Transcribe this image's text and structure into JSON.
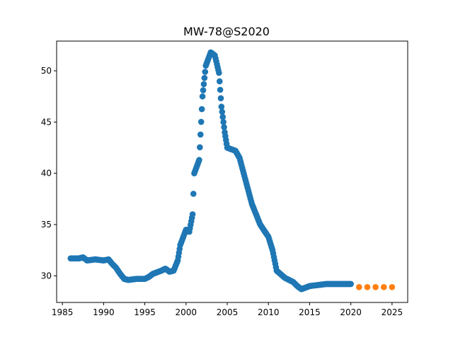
{
  "chart_data": {
    "type": "scatter",
    "title": "MW-78@S2020",
    "xlabel": "",
    "ylabel": "",
    "xlim": [
      1984.3,
      2026.9
    ],
    "ylim": [
      27.4,
      52.9
    ],
    "grid": false,
    "legend": "none",
    "x_ticks": [
      1985,
      1990,
      1995,
      2000,
      2005,
      2010,
      2015,
      2020,
      2025
    ],
    "y_ticks": [
      30,
      35,
      40,
      45,
      50
    ],
    "series": [
      {
        "color": "#1f77b4",
        "anchors": [
          [
            1986.0,
            31.7
          ],
          [
            1987.0,
            31.7
          ],
          [
            1987.5,
            31.8
          ],
          [
            1988.0,
            31.5
          ],
          [
            1989.0,
            31.6
          ],
          [
            1990.0,
            31.5
          ],
          [
            1990.6,
            31.6
          ],
          [
            1991.0,
            31.2
          ],
          [
            1991.5,
            30.8
          ],
          [
            1992.0,
            30.2
          ],
          [
            1992.5,
            29.7
          ],
          [
            1993.0,
            29.6
          ],
          [
            1994.0,
            29.7
          ],
          [
            1995.0,
            29.7
          ],
          [
            1995.5,
            29.9
          ],
          [
            1996.0,
            30.2
          ],
          [
            1997.0,
            30.5
          ],
          [
            1997.5,
            30.7
          ],
          [
            1998.0,
            30.4
          ],
          [
            1998.5,
            30.5
          ],
          [
            1999.0,
            31.5
          ],
          [
            1999.3,
            33.0
          ],
          [
            2000.0,
            34.5
          ],
          [
            2000.4,
            34.3
          ],
          [
            2000.8,
            36.0
          ],
          [
            2001.0,
            40.0
          ],
          [
            2001.6,
            41.3
          ],
          [
            2002.0,
            47.5
          ],
          [
            2002.4,
            50.5
          ],
          [
            2003.0,
            51.8
          ],
          [
            2003.5,
            51.5
          ],
          [
            2004.0,
            49.8
          ],
          [
            2004.3,
            46.5
          ],
          [
            2004.7,
            44.0
          ],
          [
            2005.0,
            42.5
          ],
          [
            2006.0,
            42.2
          ],
          [
            2006.5,
            41.5
          ],
          [
            2007.0,
            40.0
          ],
          [
            2007.5,
            38.5
          ],
          [
            2008.0,
            37.0
          ],
          [
            2009.0,
            35.0
          ],
          [
            2010.0,
            33.8
          ],
          [
            2010.5,
            32.5
          ],
          [
            2011.0,
            30.5
          ],
          [
            2012.0,
            29.8
          ],
          [
            2013.0,
            29.4
          ],
          [
            2013.5,
            29.0
          ],
          [
            2014.0,
            28.7
          ],
          [
            2015.0,
            29.0
          ],
          [
            2016.0,
            29.1
          ],
          [
            2017.0,
            29.2
          ],
          [
            2018.0,
            29.2
          ],
          [
            2019.0,
            29.2
          ],
          [
            2020.0,
            29.2
          ]
        ]
      },
      {
        "color": "#ff7f0e",
        "points": [
          [
            2021.0,
            28.9
          ],
          [
            2022.0,
            28.9
          ],
          [
            2023.0,
            28.9
          ],
          [
            2024.0,
            28.9
          ],
          [
            2025.0,
            28.9
          ]
        ]
      }
    ]
  }
}
